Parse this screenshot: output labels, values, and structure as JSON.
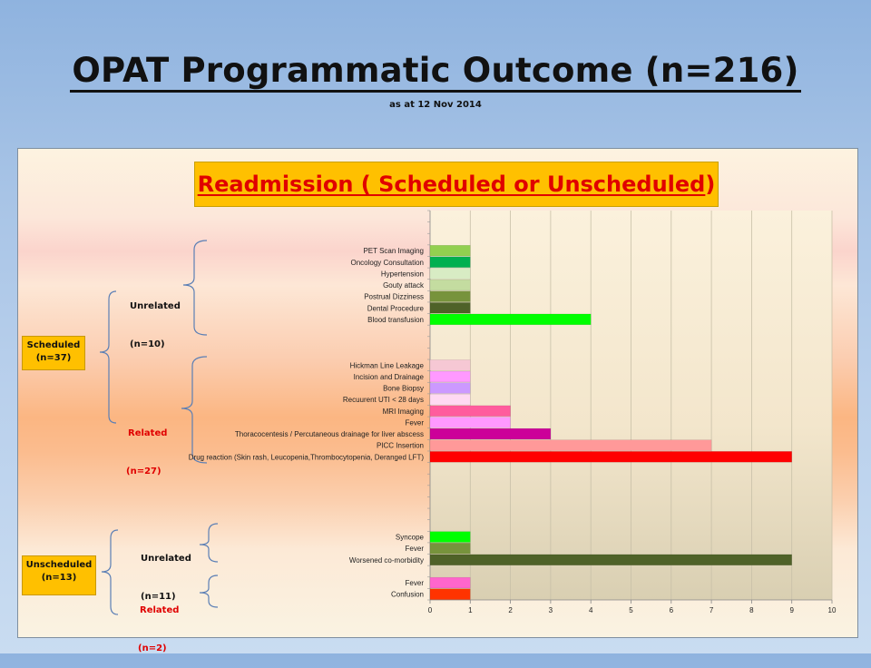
{
  "slide": {
    "title": "OPAT Programmatic Outcome (n=216)",
    "subtitle": "as at 12 Nov 2014",
    "banner_main": "Readmission ( Scheduled or Unscheduled",
    "banner_tail": ")"
  },
  "groups": {
    "scheduled": {
      "line1": "Scheduled",
      "line2": "(n=37)"
    },
    "scheduled_unrelated": {
      "line1": "Unrelated",
      "line2": "(n=10)"
    },
    "scheduled_related": {
      "line1": "Related",
      "line2": "(n=27)"
    },
    "unscheduled": {
      "line1": "Unscheduled",
      "line2": "(n=13)"
    },
    "unscheduled_unrelated": {
      "line1": "Unrelated",
      "line2": "(n=11)"
    },
    "unscheduled_related": {
      "line1": "Related",
      "line2": "(n=2)"
    }
  },
  "chart_data": {
    "type": "bar",
    "orientation": "horizontal",
    "title": "Readmission ( Scheduled or Unscheduled)",
    "xlim": [
      0,
      10
    ],
    "x_ticks": [
      "0",
      "1",
      "2",
      "3",
      "4",
      "5",
      "6",
      "7",
      "8",
      "9",
      "10"
    ],
    "grid": true,
    "categories": [
      {
        "label": "",
        "value": null
      },
      {
        "label": "",
        "value": null
      },
      {
        "label": "",
        "value": null
      },
      {
        "label": "PET Scan Imaging",
        "value": 1,
        "color": "#92d050"
      },
      {
        "label": "Oncology Consultation",
        "value": 1,
        "color": "#00b050"
      },
      {
        "label": "Hypertension",
        "value": 1,
        "color": "#d8ecc4"
      },
      {
        "label": "Gouty attack",
        "value": 1,
        "color": "#c4dca0"
      },
      {
        "label": "Postrual Dizziness",
        "value": 1,
        "color": "#77933c"
      },
      {
        "label": "Dental Procedure",
        "value": 1,
        "color": "#4f6228"
      },
      {
        "label": "Blood transfusion",
        "value": 4,
        "color": "#00ff00"
      },
      {
        "label": "",
        "value": null
      },
      {
        "label": "",
        "value": null
      },
      {
        "label": "",
        "value": null
      },
      {
        "label": "Hickman Line Leakage",
        "value": 1,
        "color": "#f6c8d4"
      },
      {
        "label": "Incision and Drainage",
        "value": 1,
        "color": "#ff99ff"
      },
      {
        "label": "Bone Biopsy",
        "value": 1,
        "color": "#cc99ff"
      },
      {
        "label": "Recuurent UTI < 28 days",
        "value": 1,
        "color": "#ffd9f2"
      },
      {
        "label": "MRI Imaging",
        "value": 2,
        "color": "#ff5c9d"
      },
      {
        "label": "Fever",
        "value": 2,
        "color": "#ff99ff"
      },
      {
        "label": "Thoracocentesis / Percutaneous drainage for liver abscess",
        "value": 3,
        "color": "#cc0099"
      },
      {
        "label": "PICC Insertion",
        "value": 7,
        "color": "#ff9999"
      },
      {
        "label": "Drug reaction (Skin rash, Leucopenia,Thrombocytopenia, Deranged LFT)",
        "value": 9,
        "color": "#ff0000"
      },
      {
        "label": "",
        "value": null
      },
      {
        "label": "",
        "value": null
      },
      {
        "label": "",
        "value": null
      },
      {
        "label": "",
        "value": null
      },
      {
        "label": "",
        "value": null
      },
      {
        "label": "",
        "value": null
      },
      {
        "label": "Syncope",
        "value": 1,
        "color": "#00ff00"
      },
      {
        "label": "Fever",
        "value": 1,
        "color": "#77933c"
      },
      {
        "label": "Worsened co-morbidity",
        "value": 9,
        "color": "#4f6228"
      },
      {
        "label": "",
        "value": null
      },
      {
        "label": "Fever",
        "value": 1,
        "color": "#ff66cc"
      },
      {
        "label": "Confusion",
        "value": 1,
        "color": "#ff3300"
      }
    ]
  }
}
